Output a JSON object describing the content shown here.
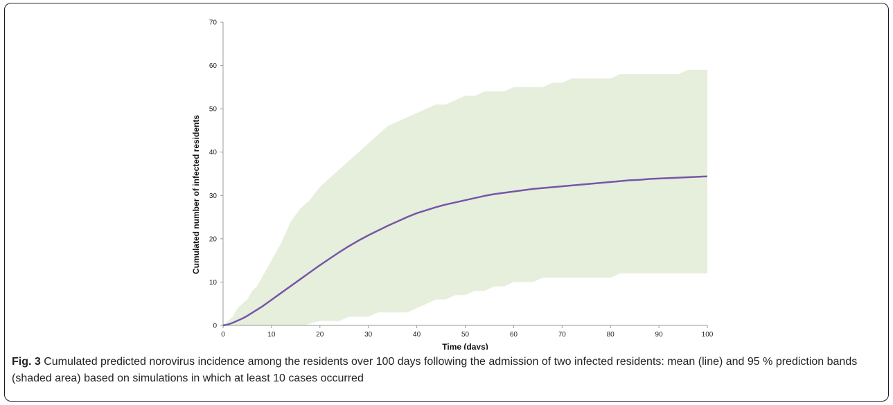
{
  "caption": {
    "label": "Fig. 3",
    "text": " Cumulated predicted norovirus incidence among the residents over 100 days following the admission of two infected residents: mean (line) and 95 % prediction bands (shaded area) based on simulations in which at least 10 cases occurred"
  },
  "chart_data": {
    "type": "area",
    "title": "",
    "xlabel": "Time (days)",
    "ylabel": "Cumulated number of infected residents",
    "xlim": [
      0,
      100
    ],
    "ylim": [
      0,
      70
    ],
    "xticks": [
      0,
      10,
      20,
      30,
      40,
      50,
      60,
      70,
      80,
      90,
      100
    ],
    "yticks": [
      0,
      10,
      20,
      30,
      40,
      50,
      60,
      70
    ],
    "grid": false,
    "legend": "none",
    "colors": {
      "band": "#e6eedc",
      "mean": "#7556a8",
      "axis": "#999999"
    },
    "x": [
      0,
      1,
      2,
      3,
      4,
      5,
      6,
      7,
      8,
      9,
      10,
      12,
      14,
      16,
      17,
      18,
      20,
      22,
      24,
      26,
      28,
      30,
      32,
      34,
      36,
      38,
      40,
      42,
      44,
      46,
      48,
      50,
      52,
      54,
      56,
      58,
      60,
      62,
      64,
      66,
      68,
      70,
      72,
      74,
      76,
      78,
      80,
      82,
      84,
      86,
      88,
      90,
      92,
      94,
      96,
      98,
      100
    ],
    "series": [
      {
        "values": [
          0,
          0,
          0,
          0,
          0,
          0,
          0,
          0,
          0,
          0,
          0,
          0,
          0,
          0,
          0,
          0.5,
          1,
          1,
          1,
          2,
          2,
          2,
          3,
          3,
          3,
          3,
          4,
          5,
          6,
          6,
          7,
          7,
          8,
          8,
          9,
          9,
          10,
          10,
          10,
          11,
          11,
          11,
          11,
          11,
          11,
          11,
          11,
          12,
          12,
          12,
          12,
          12,
          12,
          12,
          12,
          12,
          12
        ]
      },
      {
        "values": [
          0,
          1,
          2,
          4,
          5,
          6,
          8,
          9,
          11,
          13,
          15,
          19,
          24,
          27,
          28,
          29,
          32,
          34,
          36,
          38,
          40,
          42,
          44,
          46,
          47,
          48,
          49,
          50,
          51,
          51,
          52,
          53,
          53,
          54,
          54,
          54,
          55,
          55,
          55,
          55,
          56,
          56,
          57,
          57,
          57,
          57,
          57,
          58,
          58,
          58,
          58,
          58,
          58,
          58,
          59,
          59,
          59
        ]
      },
      {
        "values": [
          0,
          0.2,
          0.6,
          1.1,
          1.6,
          2.2,
          2.9,
          3.6,
          4.3,
          5.1,
          5.9,
          7.5,
          9.1,
          10.7,
          11.5,
          12.3,
          13.9,
          15.4,
          16.9,
          18.3,
          19.6,
          20.8,
          21.9,
          23.0,
          24.0,
          25.0,
          25.9,
          26.6,
          27.3,
          27.9,
          28.4,
          28.9,
          29.4,
          29.9,
          30.3,
          30.6,
          30.9,
          31.2,
          31.5,
          31.7,
          31.9,
          32.1,
          32.3,
          32.5,
          32.7,
          32.9,
          33.1,
          33.3,
          33.5,
          33.6,
          33.8,
          33.9,
          34.0,
          34.1,
          34.2,
          34.3,
          34.4
        ]
      }
    ]
  }
}
